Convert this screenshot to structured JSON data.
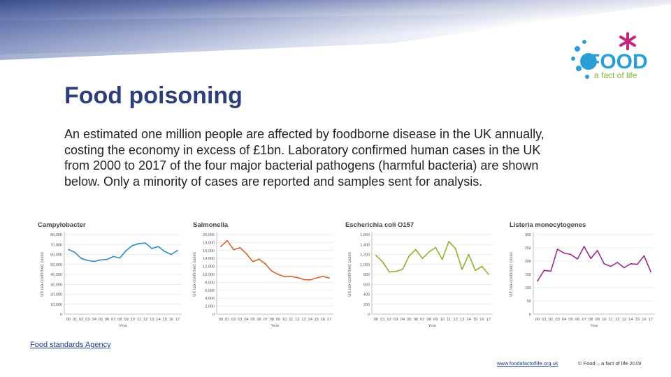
{
  "title": "Food poisoning",
  "intro": "An estimated one million people are affected by foodborne disease in the UK annually, costing the economy in excess of £1bn. Laboratory confirmed human cases in the UK from 2000 to 2017 of the four major bacterial pathogens (harmful bacteria) are shown below. Only a minority of cases are reported and samples sent for analysis.",
  "logo": {
    "word": "FOOD",
    "tagline": "a fact of life"
  },
  "source_link": "Food standards Agency",
  "footer": {
    "url": "www.foodafactoflife.org.uk",
    "copyright": "© Food – a fact of life 2019"
  },
  "chart_data": [
    {
      "type": "line",
      "title": "Campylobacter",
      "ylabel": "UK lab-confirmed cases",
      "xlabel": "Year",
      "color": "#2a8fc9",
      "categories": [
        "00",
        "01",
        "02",
        "03",
        "04",
        "05",
        "06",
        "07",
        "08",
        "09",
        "10",
        "11",
        "12",
        "13",
        "14",
        "15",
        "16",
        "17"
      ],
      "ylim": [
        0,
        80000
      ],
      "yticks": [
        0,
        10000,
        20000,
        30000,
        40000,
        50000,
        60000,
        70000,
        80000
      ],
      "ytick_labels": [
        "0",
        "10,000",
        "20,000",
        "30,000",
        "40,000",
        "50,000",
        "60,000",
        "70,000",
        "80,000"
      ],
      "values": [
        65000,
        62000,
        56000,
        54000,
        53000,
        54500,
        55000,
        58000,
        56500,
        64000,
        69000,
        71000,
        71500,
        66000,
        68000,
        63000,
        60000,
        64000
      ]
    },
    {
      "type": "line",
      "title": "Salmonella",
      "ylabel": "UK lab-confirmed cases",
      "xlabel": "Year",
      "color": "#d9622b",
      "categories": [
        "00",
        "01",
        "02",
        "03",
        "04",
        "05",
        "06",
        "07",
        "08",
        "09",
        "10",
        "11",
        "12",
        "13",
        "14",
        "15",
        "16",
        "17"
      ],
      "ylim": [
        0,
        20000
      ],
      "yticks": [
        0,
        2000,
        4000,
        6000,
        8000,
        10000,
        12000,
        14000,
        16000,
        18000,
        20000
      ],
      "ytick_labels": [
        "0",
        "2,000",
        "4,000",
        "6,000",
        "8,000",
        "10,000",
        "12,000",
        "14,000",
        "16,000",
        "18,000",
        "20,000"
      ],
      "values": [
        17000,
        18500,
        16200,
        16700,
        15200,
        13200,
        13800,
        12600,
        10800,
        10000,
        9400,
        9500,
        9200,
        8700,
        8600,
        9100,
        9500,
        9100
      ]
    },
    {
      "type": "line",
      "title": "Escherichia coli O157",
      "ylabel": "UK lab-confirmed cases",
      "xlabel": "Year",
      "color": "#8ab52a",
      "categories": [
        "00",
        "01",
        "02",
        "03",
        "04",
        "05",
        "06",
        "07",
        "08",
        "09",
        "10",
        "11",
        "12",
        "13",
        "14",
        "15",
        "16",
        "17"
      ],
      "ylim": [
        0,
        1600
      ],
      "yticks": [
        0,
        200,
        400,
        600,
        800,
        1000,
        1200,
        1400,
        1600
      ],
      "ytick_labels": [
        "0",
        "200",
        "400",
        "600",
        "800",
        "1,000",
        "1,200",
        "1,400",
        "1,600"
      ],
      "values": [
        1180,
        1050,
        850,
        860,
        900,
        1170,
        1300,
        1120,
        1250,
        1340,
        1100,
        1460,
        1320,
        900,
        1200,
        880,
        960,
        800
      ]
    },
    {
      "type": "line",
      "title": "Listeria monocytogenes",
      "ylabel": "UK lab-confirmed cases",
      "xlabel": "Year",
      "color": "#9c2a8f",
      "categories": [
        "00",
        "01",
        "02",
        "03",
        "04",
        "05",
        "06",
        "07",
        "08",
        "09",
        "10",
        "11",
        "12",
        "13",
        "14",
        "15",
        "16",
        "17"
      ],
      "ylim": [
        0,
        300
      ],
      "yticks": [
        0,
        50,
        100,
        150,
        200,
        250,
        300
      ],
      "ytick_labels": [
        "0",
        "50",
        "100",
        "150",
        "200",
        "250",
        "300"
      ],
      "values": [
        125,
        165,
        162,
        245,
        230,
        225,
        208,
        255,
        210,
        240,
        190,
        180,
        195,
        175,
        190,
        188,
        220,
        160
      ]
    }
  ]
}
